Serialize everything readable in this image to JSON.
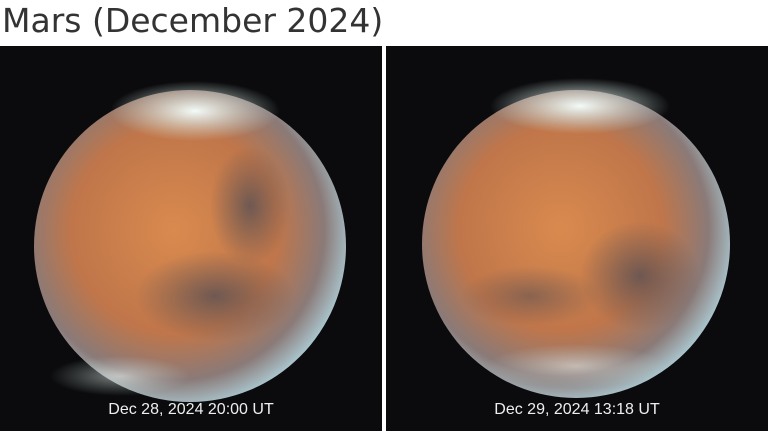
{
  "header": {
    "title": "Mars (December 2024)"
  },
  "panels": [
    {
      "caption": "Dec 28, 2024 20:00 UT"
    },
    {
      "caption": "Dec 29, 2024 13:18 UT"
    }
  ]
}
